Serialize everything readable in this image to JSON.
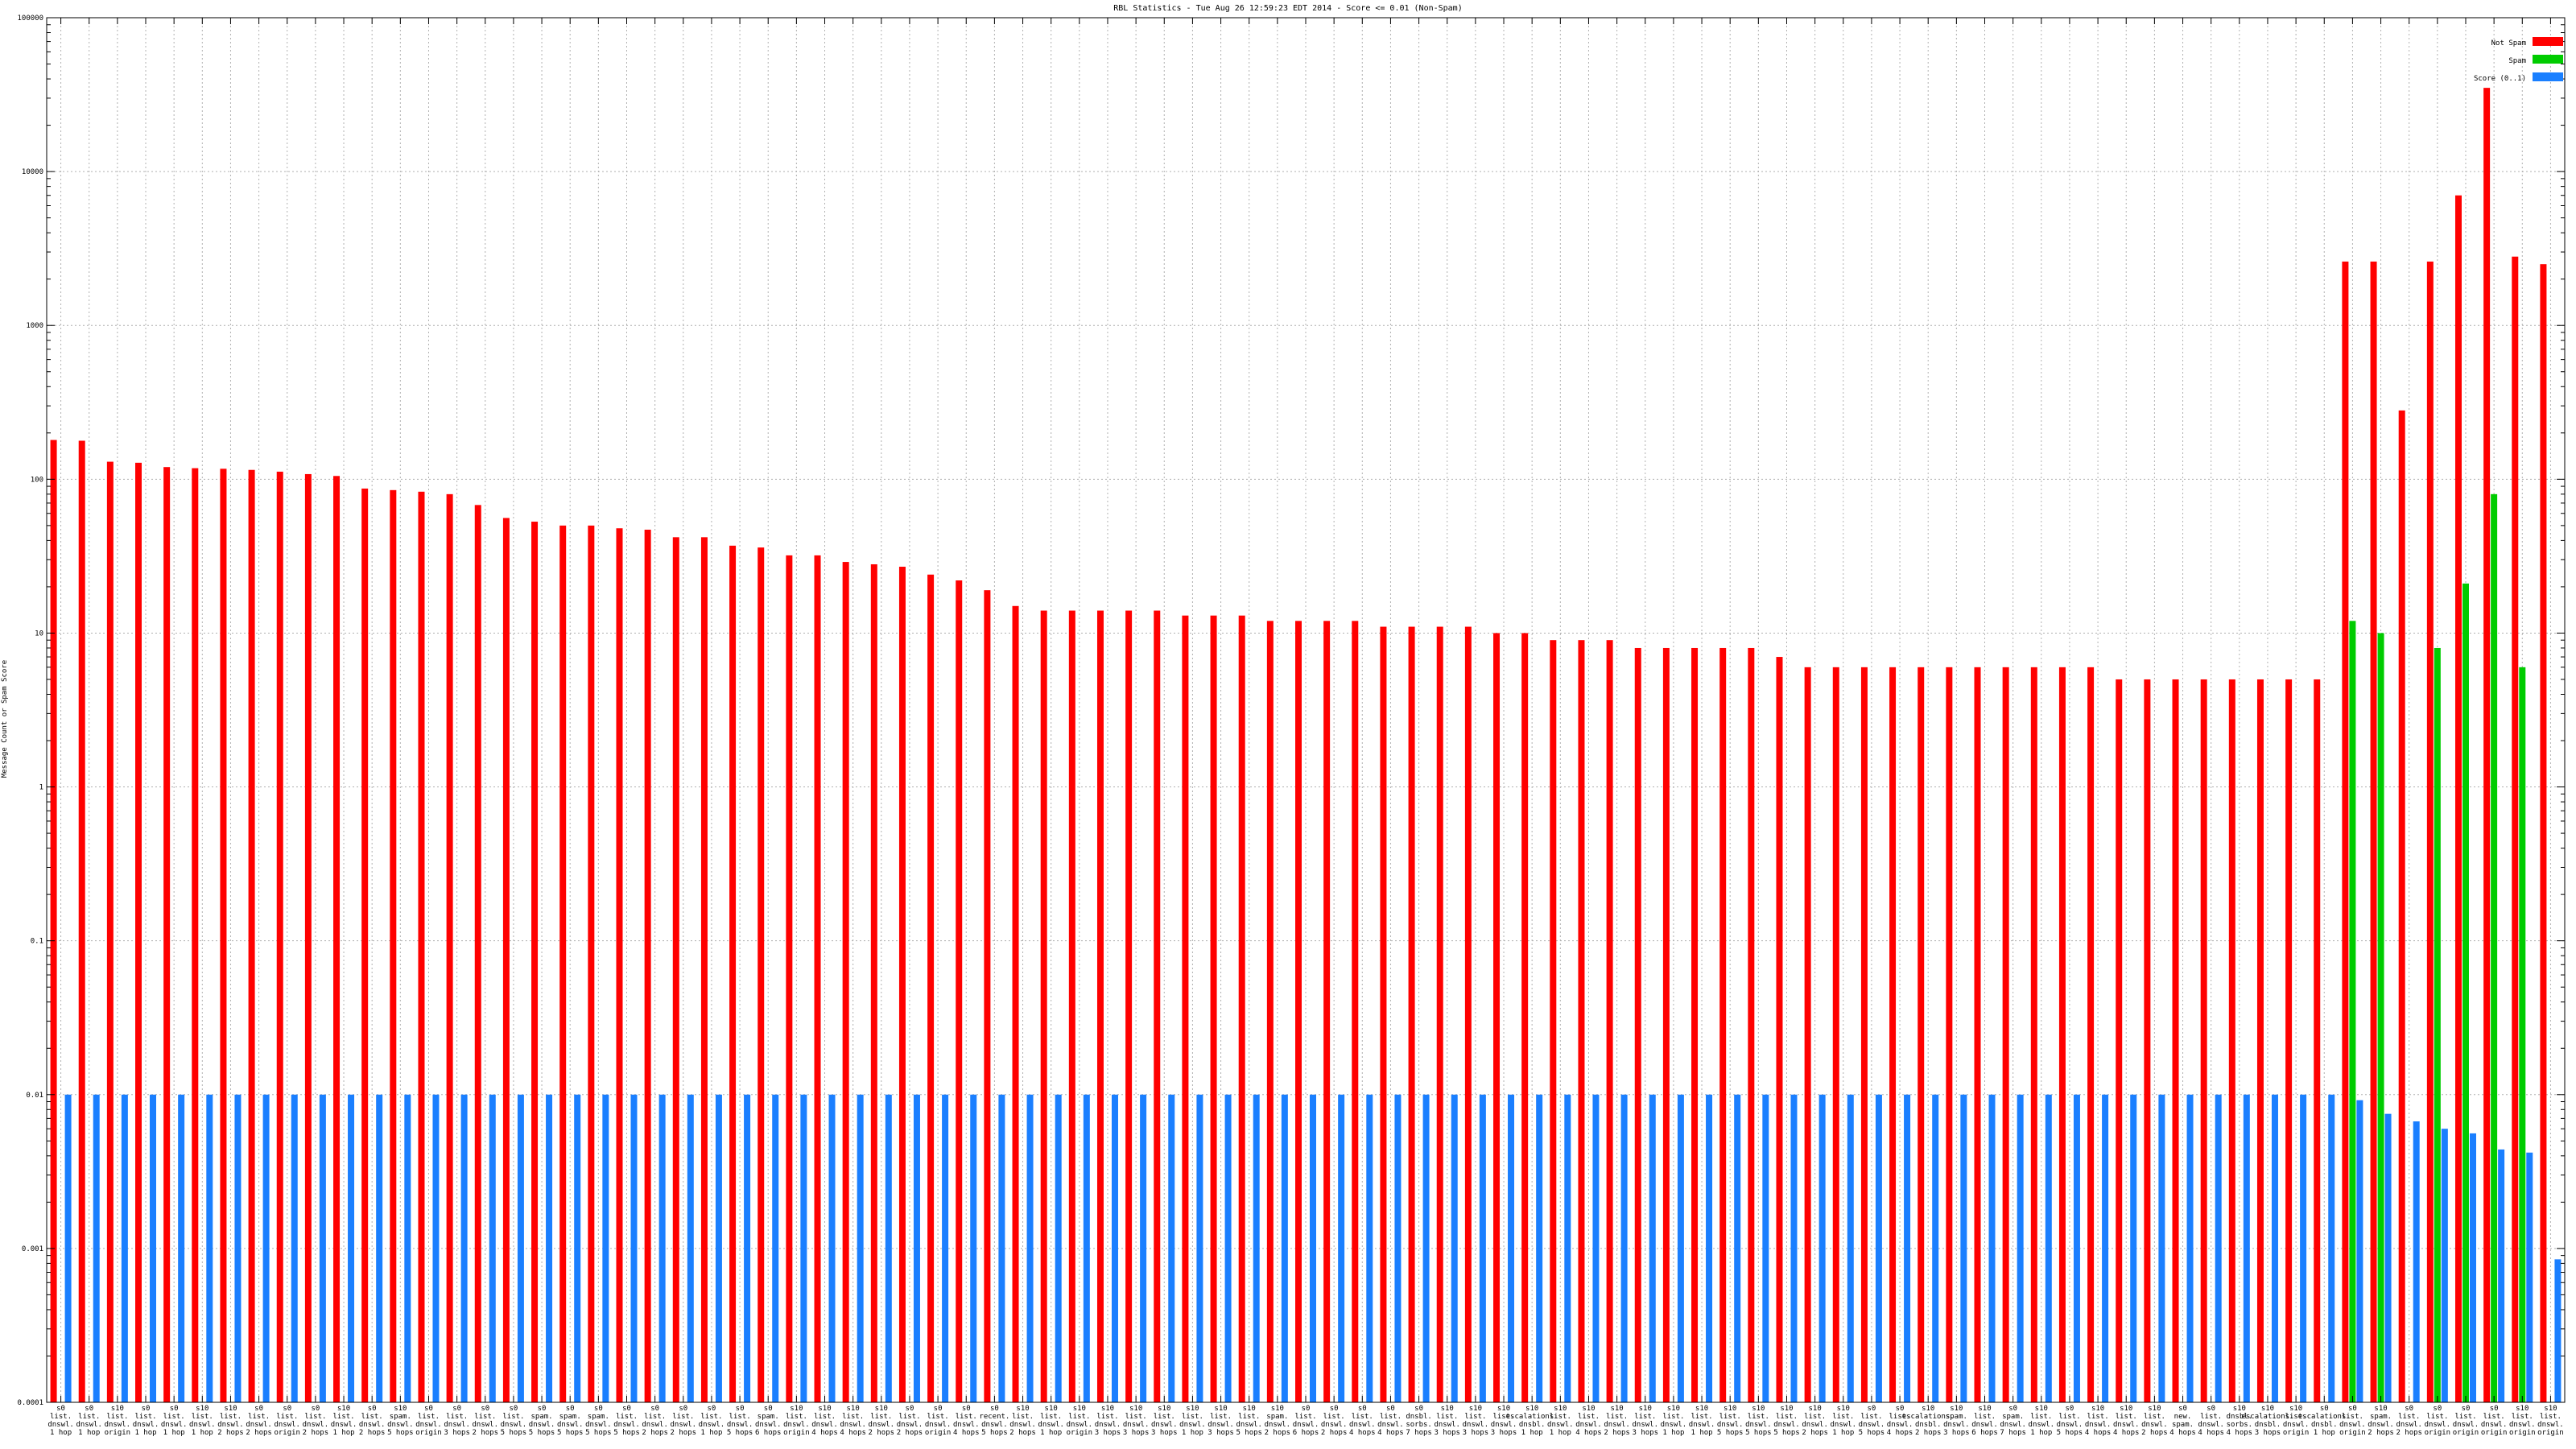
{
  "chart_data": {
    "type": "bar",
    "title": "RBL Statistics - Tue Aug 26 12:59:23 EDT 2014 - Score <= 0.01 (Non-Spam)",
    "xlabel": "",
    "ylabel": "Message Count or Spam Score",
    "scale": "log",
    "ylim": [
      0.0001,
      100000
    ],
    "yticks": [
      {
        "value": 0.0001,
        "label": "0.0001"
      },
      {
        "value": 0.001,
        "label": "0.001"
      },
      {
        "value": 0.01,
        "label": "0.01"
      },
      {
        "value": 0.1,
        "label": "0.1"
      },
      {
        "value": 1,
        "label": "1"
      },
      {
        "value": 10,
        "label": "10"
      },
      {
        "value": 100,
        "label": "100"
      },
      {
        "value": 1000,
        "label": "1000"
      },
      {
        "value": 10000,
        "label": "10000"
      },
      {
        "value": 100000,
        "label": "100000"
      }
    ],
    "grid": true,
    "legend_position": "top-right",
    "categories": [
      [
        "s0",
        "list.",
        "dnswl.",
        "1 hop"
      ],
      [
        "s0",
        "list.",
        "dnswl.",
        "1 hop"
      ],
      [
        "s10",
        "list.",
        "dnswl.",
        "origin"
      ],
      [
        "s0",
        "list.",
        "dnswl.",
        "1 hop"
      ],
      [
        "s0",
        "list.",
        "dnswl.",
        "1 hop"
      ],
      [
        "s10",
        "list.",
        "dnswl.",
        "1 hop"
      ],
      [
        "s10",
        "list.",
        "dnswl.",
        "2 hops"
      ],
      [
        "s0",
        "list.",
        "dnswl.",
        "2 hops"
      ],
      [
        "s0",
        "list.",
        "dnswl.",
        "origin"
      ],
      [
        "s0",
        "list.",
        "dnswl.",
        "2 hops"
      ],
      [
        "s10",
        "list.",
        "dnswl.",
        "1 hop"
      ],
      [
        "s0",
        "list.",
        "dnswl.",
        "2 hops"
      ],
      [
        "s10",
        "spam.",
        "dnswl.",
        "5 hops"
      ],
      [
        "s0",
        "list.",
        "dnswl.",
        "origin"
      ],
      [
        "s0",
        "list.",
        "dnswl.",
        "3 hops"
      ],
      [
        "s0",
        "list.",
        "dnswl.",
        "2 hops"
      ],
      [
        "s0",
        "list.",
        "dnswl.",
        "5 hops"
      ],
      [
        "s0",
        "spam.",
        "dnswl.",
        "5 hops"
      ],
      [
        "s0",
        "spam.",
        "dnswl.",
        "5 hops"
      ],
      [
        "s0",
        "spam.",
        "dnswl.",
        "5 hops"
      ],
      [
        "s0",
        "list.",
        "dnswl.",
        "5 hops"
      ],
      [
        "s0",
        "list.",
        "dnswl.",
        "2 hops"
      ],
      [
        "s0",
        "list.",
        "dnswl.",
        "2 hops"
      ],
      [
        "s0",
        "list.",
        "dnswl.",
        "1 hop"
      ],
      [
        "s0",
        "list.",
        "dnswl.",
        "5 hops"
      ],
      [
        "s0",
        "spam.",
        "dnswl.",
        "6 hops"
      ],
      [
        "s10",
        "list.",
        "dnswl.",
        "origin"
      ],
      [
        "s10",
        "list.",
        "dnswl.",
        "4 hops"
      ],
      [
        "s10",
        "list.",
        "dnswl.",
        "4 hops"
      ],
      [
        "s10",
        "list.",
        "dnswl.",
        "2 hops"
      ],
      [
        "s0",
        "list.",
        "dnswl.",
        "2 hops"
      ],
      [
        "s0",
        "list.",
        "dnswl.",
        "origin"
      ],
      [
        "s0",
        "list.",
        "dnswl.",
        "4 hops"
      ],
      [
        "s0",
        "recent.",
        "dnswl.",
        "5 hops"
      ],
      [
        "s10",
        "list.",
        "dnswl.",
        "2 hops"
      ],
      [
        "s10",
        "list.",
        "dnswl.",
        "1 hop"
      ],
      [
        "s10",
        "list.",
        "dnswl.",
        "origin"
      ],
      [
        "s10",
        "list.",
        "dnswl.",
        "3 hops"
      ],
      [
        "s10",
        "list.",
        "dnswl.",
        "3 hops"
      ],
      [
        "s10",
        "list.",
        "dnswl.",
        "3 hops"
      ],
      [
        "s10",
        "list.",
        "dnswl.",
        "1 hop"
      ],
      [
        "s10",
        "list.",
        "dnswl.",
        "3 hops"
      ],
      [
        "s10",
        "list.",
        "dnswl.",
        "5 hops"
      ],
      [
        "s10",
        "spam.",
        "dnswl.",
        "2 hops"
      ],
      [
        "s0",
        "list.",
        "dnswl.",
        "6 hops"
      ],
      [
        "s0",
        "list.",
        "dnswl.",
        "2 hops"
      ],
      [
        "s0",
        "list.",
        "dnswl.",
        "4 hops"
      ],
      [
        "s0",
        "list.",
        "dnswl.",
        "4 hops"
      ],
      [
        "s0",
        "dnsbl.",
        "sorbs.",
        "7 hops"
      ],
      [
        "s10",
        "list.",
        "dnswl.",
        "3 hops"
      ],
      [
        "s10",
        "list.",
        "dnswl.",
        "3 hops"
      ],
      [
        "s10",
        "list.",
        "dnswl.",
        "3 hops"
      ],
      [
        "s10",
        "escalations.",
        "dnsbl.",
        "1 hop"
      ],
      [
        "s10",
        "list.",
        "dnswl.",
        "1 hop"
      ],
      [
        "s10",
        "list.",
        "dnswl.",
        "4 hops"
      ],
      [
        "s10",
        "list.",
        "dnswl.",
        "2 hops"
      ],
      [
        "s10",
        "list.",
        "dnswl.",
        "3 hops"
      ],
      [
        "s10",
        "list.",
        "dnswl.",
        "1 hop"
      ],
      [
        "s10",
        "list.",
        "dnswl.",
        "1 hop"
      ],
      [
        "s10",
        "list.",
        "dnswl.",
        "5 hops"
      ],
      [
        "s10",
        "list.",
        "dnswl.",
        "5 hops"
      ],
      [
        "s10",
        "list.",
        "dnswl.",
        "5 hops"
      ],
      [
        "s10",
        "list.",
        "dnswl.",
        "2 hops"
      ],
      [
        "s10",
        "list.",
        "dnswl.",
        "1 hop"
      ],
      [
        "s0",
        "list.",
        "dnswl.",
        "5 hops"
      ],
      [
        "s0",
        "list.",
        "dnswl.",
        "4 hops"
      ],
      [
        "s10",
        "escalations.",
        "dnsbl.",
        "2 hops"
      ],
      [
        "s10",
        "spam.",
        "dnswl.",
        "3 hops"
      ],
      [
        "s10",
        "list.",
        "dnswl.",
        "6 hops"
      ],
      [
        "s0",
        "spam.",
        "dnswl.",
        "7 hops"
      ],
      [
        "s10",
        "list.",
        "dnswl.",
        "1 hop"
      ],
      [
        "s0",
        "list.",
        "dnswl.",
        "5 hops"
      ],
      [
        "s10",
        "list.",
        "dnswl.",
        "4 hops"
      ],
      [
        "s10",
        "list.",
        "dnswl.",
        "4 hops"
      ],
      [
        "s10",
        "list.",
        "dnswl.",
        "2 hops"
      ],
      [
        "s0",
        "new.",
        "spam.",
        "4 hops"
      ],
      [
        "s0",
        "list.",
        "dnswl.",
        "4 hops"
      ],
      [
        "s10",
        "dnsbl.",
        "sorbs.",
        "4 hops"
      ],
      [
        "s10",
        "escalations.",
        "dnsbl.",
        "3 hops"
      ],
      [
        "s10",
        "list.",
        "dnswl.",
        "origin"
      ],
      [
        "s0",
        "escalations.",
        "dnsbl.",
        "1 hop"
      ],
      [
        "s0",
        "list.",
        "dnswl.",
        "origin"
      ],
      [
        "s10",
        "spam.",
        "dnswl.",
        "2 hops"
      ],
      [
        "s0",
        "list.",
        "dnswl.",
        "2 hops"
      ],
      [
        "s0",
        "list.",
        "dnswl.",
        "origin"
      ],
      [
        "s0",
        "list.",
        "dnswl.",
        "origin"
      ],
      [
        "s0",
        "list.",
        "dnswl.",
        "origin"
      ],
      [
        "s10",
        "list.",
        "dnswl.",
        "origin"
      ],
      [
        "s10",
        "list.",
        "dnswl.",
        "origin"
      ]
    ],
    "series": [
      {
        "name": "Not Spam",
        "color": "#ff0000",
        "values": [
          180,
          178,
          130,
          128,
          120,
          118,
          117,
          115,
          112,
          108,
          105,
          87,
          85,
          83,
          80,
          68,
          56,
          53,
          50,
          50,
          48,
          47,
          42,
          42,
          37,
          36,
          32,
          32,
          29,
          28,
          27,
          24,
          22,
          19,
          15,
          14,
          14,
          14,
          14,
          14,
          13,
          13,
          13,
          12,
          12,
          12,
          12,
          11,
          11,
          11,
          11,
          10,
          10,
          9,
          9,
          9,
          8,
          8,
          8,
          8,
          8,
          7,
          6,
          6,
          6,
          6,
          6,
          6,
          6,
          6,
          6,
          6,
          6,
          5,
          5,
          5,
          5,
          5,
          5,
          5,
          5,
          2600,
          2600,
          280,
          2600,
          7000,
          35000,
          2800,
          2500
        ]
      },
      {
        "name": "Spam",
        "color": "#00cc00",
        "values": [
          null,
          null,
          null,
          null,
          null,
          null,
          null,
          null,
          null,
          null,
          null,
          null,
          null,
          null,
          null,
          null,
          null,
          null,
          null,
          null,
          null,
          null,
          null,
          null,
          null,
          null,
          null,
          null,
          null,
          null,
          null,
          null,
          null,
          null,
          null,
          null,
          null,
          null,
          null,
          null,
          null,
          null,
          null,
          null,
          null,
          null,
          null,
          null,
          null,
          null,
          null,
          null,
          null,
          null,
          null,
          null,
          null,
          null,
          null,
          null,
          null,
          null,
          null,
          null,
          null,
          null,
          null,
          null,
          null,
          null,
          null,
          null,
          null,
          null,
          null,
          null,
          null,
          null,
          null,
          null,
          null,
          12,
          10,
          null,
          8,
          21,
          80,
          6,
          null
        ]
      },
      {
        "name": "Score (0..1)",
        "color": "#1a7fff",
        "values": [
          0.01,
          0.01,
          0.01,
          0.01,
          0.01,
          0.01,
          0.01,
          0.01,
          0.01,
          0.01,
          0.01,
          0.01,
          0.01,
          0.01,
          0.01,
          0.01,
          0.01,
          0.01,
          0.01,
          0.01,
          0.01,
          0.01,
          0.01,
          0.01,
          0.01,
          0.01,
          0.01,
          0.01,
          0.01,
          0.01,
          0.01,
          0.01,
          0.01,
          0.01,
          0.01,
          0.01,
          0.01,
          0.01,
          0.01,
          0.01,
          0.01,
          0.01,
          0.01,
          0.01,
          0.01,
          0.01,
          0.01,
          0.01,
          0.01,
          0.01,
          0.01,
          0.01,
          0.01,
          0.01,
          0.01,
          0.01,
          0.01,
          0.01,
          0.01,
          0.01,
          0.01,
          0.01,
          0.01,
          0.01,
          0.01,
          0.01,
          0.01,
          0.01,
          0.01,
          0.01,
          0.01,
          0.01,
          0.01,
          0.01,
          0.01,
          0.01,
          0.01,
          0.01,
          0.01,
          0.01,
          0.01,
          0.0092,
          0.0075,
          0.0067,
          0.006,
          0.0056,
          0.0044,
          0.0042,
          0.00085
        ]
      }
    ]
  }
}
